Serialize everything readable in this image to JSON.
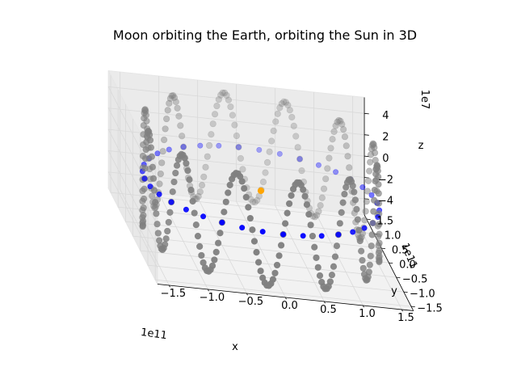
{
  "chart_data": {
    "type": "scatter3d",
    "title": "Moon orbiting the Earth, orbiting the Sun in 3D",
    "xlabel": "x",
    "ylabel": "y",
    "zlabel": "z",
    "x_offset_label": "1e11",
    "y_offset_label": "1e11",
    "z_offset_label": "1e7",
    "x_ticks": [
      "−1.5",
      "−1.0",
      "−0.5",
      "0.0",
      "0.5",
      "1.0",
      "1.5"
    ],
    "y_ticks": [
      "−1.5",
      "−1.0",
      "−0.5",
      "0.0",
      "0.5",
      "1.0",
      "1.5"
    ],
    "z_ticks": [
      "−4",
      "−2",
      "0",
      "2",
      "4"
    ],
    "x_range": [
      -150000000000.0,
      150000000000.0
    ],
    "y_range": [
      -150000000000.0,
      150000000000.0
    ],
    "z_range": [
      -50000000.0,
      50000000.0
    ],
    "grid": true,
    "colors": {
      "sun": "#ffa500",
      "earth": "#0000ff",
      "moon": "#808080",
      "pane": "#f2f2f2",
      "grid": "#d9d9d9"
    },
    "sun": {
      "x": 0,
      "y": 0,
      "z": 0
    },
    "earth_orbit": {
      "radius": 150000000000.0,
      "points": 36
    },
    "moon_path": {
      "radius": 150000000000.0,
      "amplitude": 50000000.0,
      "oscillations": 12,
      "points": 360
    }
  }
}
